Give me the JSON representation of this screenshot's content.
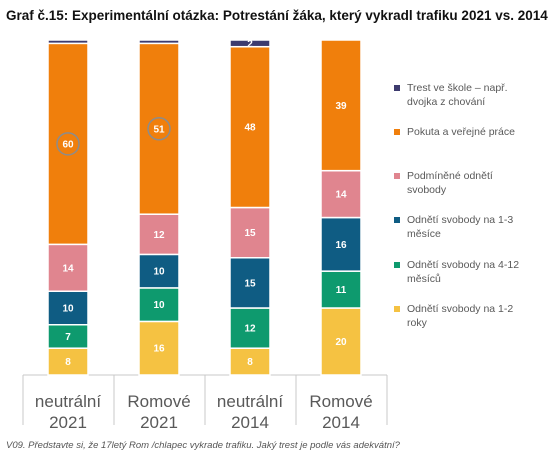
{
  "title": "Graf č.15: Experimentální otázka: Potrestání žáka, který vykradl trafiku 2021 vs. 2014",
  "footnote": "V09. Představte si, že 17letý Rom /chlapec vykrade trafiku. Jaký trest je podle vás adekvátní?",
  "chart_data": {
    "type": "bar",
    "stacked": true,
    "categories": [
      {
        "line1": "neutrální",
        "line2": "2021"
      },
      {
        "line1": "Romové",
        "line2": "2021"
      },
      {
        "line1": "neutrální",
        "line2": "2014"
      },
      {
        "line1": "Romové",
        "line2": "2014"
      }
    ],
    "series": [
      {
        "name": "Odnětí svobody na 1-2 roky",
        "color": "#F5C242",
        "values": [
          8,
          16,
          8,
          20
        ],
        "labels": [
          "8",
          "16",
          "8",
          "20"
        ]
      },
      {
        "name": "Odnětí svobody na 4-12 měsíců",
        "color": "#0E9A6E",
        "values": [
          7,
          10,
          12,
          11
        ],
        "labels": [
          "7",
          "10",
          "12",
          "11"
        ]
      },
      {
        "name": "Odnětí svobody na 1-3 měsíce",
        "color": "#0F5C83",
        "values": [
          10,
          10,
          15,
          16
        ],
        "labels": [
          "10",
          "10",
          "15",
          "16"
        ]
      },
      {
        "name": "Podmíněné odnětí svobody",
        "color": "#E0858F",
        "values": [
          14,
          12,
          15,
          14
        ],
        "labels": [
          "14",
          "12",
          "15",
          "14"
        ]
      },
      {
        "name": "Pokuta a veřejné práce",
        "color": "#F07F0C",
        "values": [
          60,
          51,
          48,
          39
        ],
        "labels": [
          "60",
          "51",
          "48",
          "39"
        ]
      },
      {
        "name": "Trest ve škole – např. dvojka z chování",
        "color": "#3D3B6E",
        "values": [
          1,
          1,
          2,
          0
        ],
        "labels": [
          "",
          "",
          "2",
          ""
        ]
      }
    ],
    "circled": [
      {
        "category": 0,
        "series": 4
      },
      {
        "category": 1,
        "series": 4
      }
    ],
    "ylim": [
      0,
      100
    ],
    "legend_position": "right",
    "grid": false
  },
  "legend": [
    {
      "line1": "Trest ve škole – např.",
      "line2": "dvojka z chování",
      "color": "#3D3B6E"
    },
    {
      "line1": "Pokuta a veřejné práce",
      "line2": "",
      "color": "#F07F0C"
    },
    {
      "line1": "Podmíněné odnětí",
      "line2": "svobody",
      "color": "#E0858F"
    },
    {
      "line1": "Odnětí svobody na 1-3",
      "line2": "měsíce",
      "color": "#0F5C83"
    },
    {
      "line1": "Odnětí svobody na 4-12",
      "line2": "měsíců",
      "color": "#0E9A6E"
    },
    {
      "line1": "Odnětí svobody na 1-2",
      "line2": "roky",
      "color": "#F5C242"
    }
  ]
}
